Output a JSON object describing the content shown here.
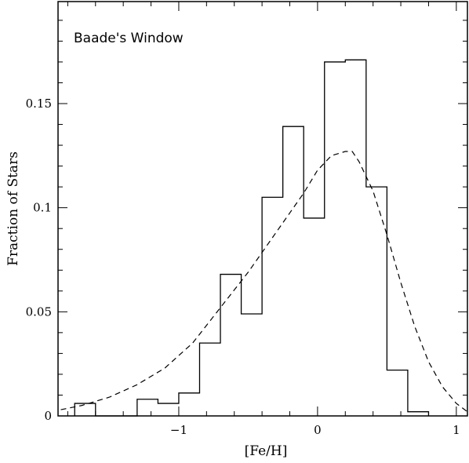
{
  "chart_data": {
    "type": "histogram",
    "title": "",
    "annotation": "Baade's Window",
    "xlabel": "[Fe/H]",
    "ylabel": "Fraction of Stars",
    "xlim": [
      -1.87,
      1.08
    ],
    "ylim": [
      0,
      0.199
    ],
    "xticks": [
      -1,
      0,
      1
    ],
    "xtick_labels": [
      "−1",
      "0",
      "1"
    ],
    "yticks": [
      0,
      0.05,
      0.1,
      0.15
    ],
    "ytick_labels": [
      "0",
      "0.05",
      "0.1",
      "0.15"
    ],
    "grid": false,
    "series": [
      {
        "style": "solid-step",
        "bin_width": 0.15,
        "bins": [
          {
            "left": -1.75,
            "value": 0.006
          },
          {
            "left": -1.6,
            "value": 0.0
          },
          {
            "left": -1.45,
            "value": 0.0
          },
          {
            "left": -1.3,
            "value": 0.008
          },
          {
            "left": -1.15,
            "value": 0.006
          },
          {
            "left": -1.0,
            "value": 0.011
          },
          {
            "left": -0.85,
            "value": 0.035
          },
          {
            "left": -0.7,
            "value": 0.068
          },
          {
            "left": -0.55,
            "value": 0.049
          },
          {
            "left": -0.4,
            "value": 0.105
          },
          {
            "left": -0.25,
            "value": 0.139
          },
          {
            "left": -0.1,
            "value": 0.095
          },
          {
            "left": 0.05,
            "value": 0.17
          },
          {
            "left": 0.2,
            "value": 0.171
          },
          {
            "left": 0.35,
            "value": 0.11
          },
          {
            "left": 0.5,
            "value": 0.022
          },
          {
            "left": 0.65,
            "value": 0.002
          }
        ]
      },
      {
        "style": "dashed-line",
        "x": [
          -1.85,
          -1.7,
          -1.5,
          -1.3,
          -1.1,
          -0.9,
          -0.7,
          -0.5,
          -0.3,
          -0.1,
          0.0,
          0.1,
          0.2,
          0.25,
          0.3,
          0.4,
          0.5,
          0.6,
          0.7,
          0.8,
          0.9,
          1.0,
          1.08
        ],
        "y": [
          0.003,
          0.005,
          0.009,
          0.015,
          0.023,
          0.035,
          0.052,
          0.069,
          0.088,
          0.107,
          0.118,
          0.125,
          0.127,
          0.127,
          0.122,
          0.108,
          0.087,
          0.064,
          0.043,
          0.026,
          0.014,
          0.006,
          0.002
        ]
      }
    ]
  }
}
